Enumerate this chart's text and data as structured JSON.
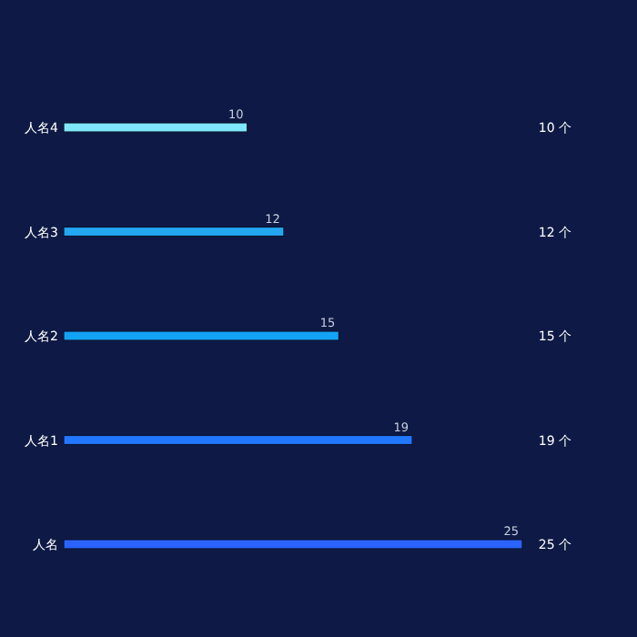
{
  "chart_data": {
    "type": "bar",
    "orientation": "horizontal",
    "categories": [
      "人名4",
      "人名3",
      "人名2",
      "人名1",
      "人名"
    ],
    "values": [
      10,
      12,
      15,
      19,
      25
    ],
    "colors": [
      "#7ee8fa",
      "#22a7f0",
      "#13a3f5",
      "#2277ff",
      "#2a63ff"
    ],
    "data_labels": true,
    "annotations": [
      "10 个",
      "12 个",
      "15 个",
      "19 个",
      "25 个"
    ]
  }
}
